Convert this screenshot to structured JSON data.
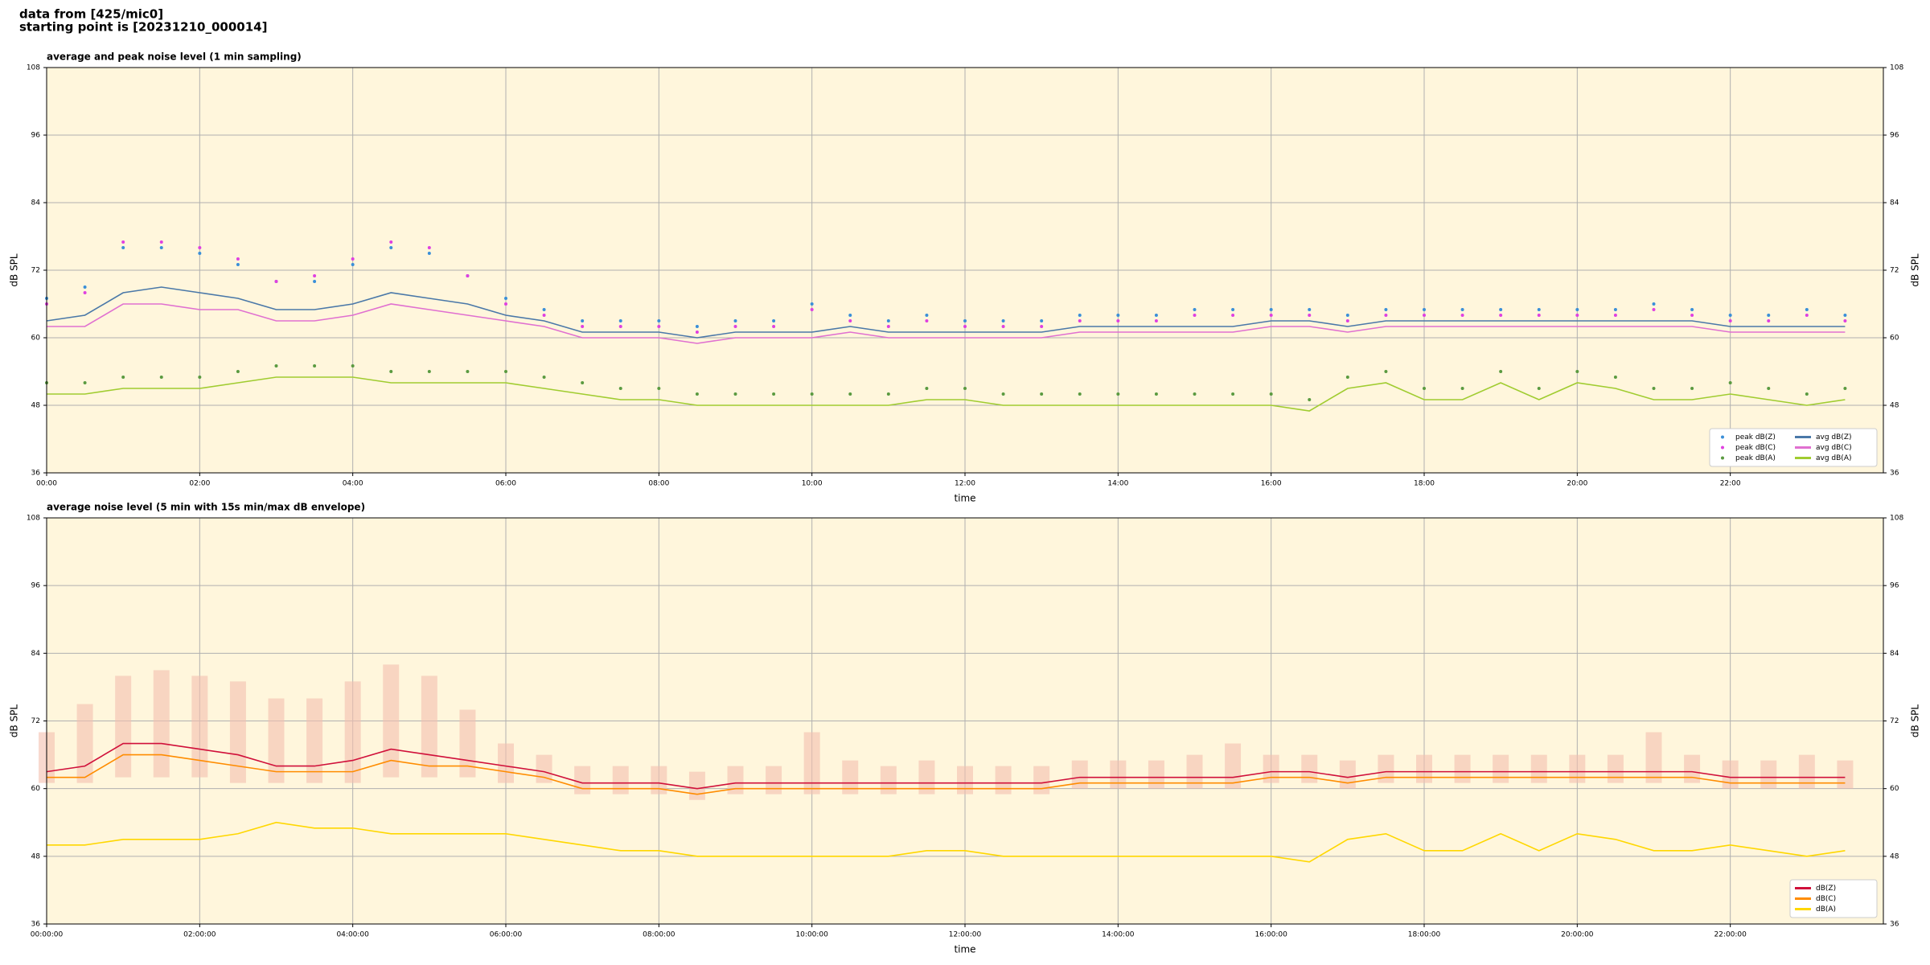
{
  "header": {
    "lines": [
      "data from [425/mic0]",
      "starting point is [20231210_000014]"
    ]
  },
  "chart_data": [
    {
      "type": "line",
      "title": "average and peak noise level (1 min sampling)",
      "xlabel": "time",
      "ylabel": "dB SPL",
      "background": "#fff6dc",
      "grid": true,
      "legend": "lower right",
      "legend_columns": 2,
      "xlim": [
        0,
        24
      ],
      "ylim": [
        36,
        108
      ],
      "yticks": [
        36,
        48,
        60,
        72,
        84,
        96,
        108
      ],
      "xticks": [
        {
          "value": 0,
          "label": "00:00"
        },
        {
          "value": 2,
          "label": "02:00"
        },
        {
          "value": 4,
          "label": "04:00"
        },
        {
          "value": 6,
          "label": "06:00"
        },
        {
          "value": 8,
          "label": "08:00"
        },
        {
          "value": 10,
          "label": "10:00"
        },
        {
          "value": 12,
          "label": "12:00"
        },
        {
          "value": 14,
          "label": "14:00"
        },
        {
          "value": 16,
          "label": "16:00"
        },
        {
          "value": 18,
          "label": "18:00"
        },
        {
          "value": 20,
          "label": "20:00"
        },
        {
          "value": 22,
          "label": "22:00"
        }
      ],
      "x": [
        0,
        0.5,
        1,
        1.5,
        2,
        2.5,
        3,
        3.5,
        4,
        4.5,
        5,
        5.5,
        6,
        6.5,
        7,
        7.5,
        8,
        8.5,
        9,
        9.5,
        10,
        10.5,
        11,
        11.5,
        12,
        12.5,
        13,
        13.5,
        14,
        14.5,
        15,
        15.5,
        16,
        16.5,
        17,
        17.5,
        18,
        18.5,
        19,
        19.5,
        20,
        20.5,
        21,
        21.5,
        22,
        22.5,
        23,
        23.5
      ],
      "series": [
        {
          "name": "peak dB(Z)",
          "style": "dots",
          "color": "#3a8fd8",
          "values": [
            67,
            69,
            76,
            76,
            75,
            73,
            70,
            70,
            73,
            76,
            75,
            71,
            67,
            65,
            63,
            63,
            63,
            62,
            63,
            63,
            66,
            64,
            63,
            64,
            63,
            63,
            63,
            64,
            64,
            64,
            65,
            65,
            65,
            65,
            64,
            65,
            65,
            65,
            65,
            65,
            65,
            65,
            66,
            65,
            64,
            64,
            65,
            64
          ]
        },
        {
          "name": "peak dB(C)",
          "style": "dots",
          "color": "#e040e0",
          "values": [
            66,
            68,
            77,
            77,
            76,
            74,
            70,
            71,
            74,
            77,
            76,
            71,
            66,
            64,
            62,
            62,
            62,
            61,
            62,
            62,
            65,
            63,
            62,
            63,
            62,
            62,
            62,
            63,
            63,
            63,
            64,
            64,
            64,
            64,
            63,
            64,
            64,
            64,
            64,
            64,
            64,
            64,
            65,
            64,
            63,
            63,
            64,
            63
          ]
        },
        {
          "name": "peak dB(A)",
          "style": "dots",
          "color": "#5a9a40",
          "values": [
            52,
            52,
            53,
            53,
            53,
            54,
            55,
            55,
            55,
            54,
            54,
            54,
            54,
            53,
            52,
            51,
            51,
            50,
            50,
            50,
            50,
            50,
            50,
            51,
            51,
            50,
            50,
            50,
            50,
            50,
            50,
            50,
            50,
            49,
            53,
            54,
            51,
            51,
            54,
            51,
            54,
            53,
            51,
            51,
            52,
            51,
            50,
            51
          ]
        },
        {
          "name": "avg dB(Z)",
          "style": "line",
          "color": "#4a78a8",
          "values": [
            63,
            64,
            68,
            69,
            68,
            67,
            65,
            65,
            66,
            68,
            67,
            66,
            64,
            63,
            61,
            61,
            61,
            60,
            61,
            61,
            61,
            62,
            61,
            61,
            61,
            61,
            61,
            62,
            62,
            62,
            62,
            62,
            63,
            63,
            62,
            63,
            63,
            63,
            63,
            63,
            63,
            63,
            63,
            63,
            62,
            62,
            62,
            62
          ]
        },
        {
          "name": "avg dB(C)",
          "style": "line",
          "color": "#e070d0",
          "values": [
            62,
            62,
            66,
            66,
            65,
            65,
            63,
            63,
            64,
            66,
            65,
            64,
            63,
            62,
            60,
            60,
            60,
            59,
            60,
            60,
            60,
            61,
            60,
            60,
            60,
            60,
            60,
            61,
            61,
            61,
            61,
            61,
            62,
            62,
            61,
            62,
            62,
            62,
            62,
            62,
            62,
            62,
            62,
            62,
            61,
            61,
            61,
            61
          ]
        },
        {
          "name": "avg dB(A)",
          "style": "line",
          "color": "#a0cc30",
          "values": [
            50,
            50,
            51,
            51,
            51,
            52,
            53,
            53,
            53,
            52,
            52,
            52,
            52,
            51,
            50,
            49,
            49,
            48,
            48,
            48,
            48,
            48,
            48,
            49,
            49,
            48,
            48,
            48,
            48,
            48,
            48,
            48,
            48,
            47,
            51,
            52,
            49,
            49,
            52,
            49,
            52,
            51,
            49,
            49,
            50,
            49,
            48,
            49
          ]
        }
      ]
    },
    {
      "type": "line",
      "title": "average noise level (5 min with 15s min/max dB envelope)",
      "xlabel": "time",
      "ylabel": "dB SPL",
      "background": "#fff6dc",
      "grid": true,
      "legend": "lower right",
      "legend_columns": 1,
      "xlim": [
        0,
        24
      ],
      "ylim": [
        36,
        108
      ],
      "yticks": [
        36,
        48,
        60,
        72,
        84,
        96,
        108
      ],
      "xticks": [
        {
          "value": 0,
          "label": "00:00:00"
        },
        {
          "value": 2,
          "label": "02:00:00"
        },
        {
          "value": 4,
          "label": "04:00:00"
        },
        {
          "value": 6,
          "label": "06:00:00"
        },
        {
          "value": 8,
          "label": "08:00:00"
        },
        {
          "value": 10,
          "label": "10:00:00"
        },
        {
          "value": 12,
          "label": "12:00:00"
        },
        {
          "value": 14,
          "label": "14:00:00"
        },
        {
          "value": 16,
          "label": "16:00:00"
        },
        {
          "value": 18,
          "label": "18:00:00"
        },
        {
          "value": 20,
          "label": "20:00:00"
        },
        {
          "value": 22,
          "label": "22:00:00"
        }
      ],
      "x": [
        0,
        0.5,
        1,
        1.5,
        2,
        2.5,
        3,
        3.5,
        4,
        4.5,
        5,
        5.5,
        6,
        6.5,
        7,
        7.5,
        8,
        8.5,
        9,
        9.5,
        10,
        10.5,
        11,
        11.5,
        12,
        12.5,
        13,
        13.5,
        14,
        14.5,
        15,
        15.5,
        16,
        16.5,
        17,
        17.5,
        18,
        18.5,
        19,
        19.5,
        20,
        20.5,
        21,
        21.5,
        22,
        22.5,
        23,
        23.5
      ],
      "band": {
        "color": "#f4c0b0",
        "upper": [
          70,
          75,
          80,
          81,
          80,
          79,
          76,
          76,
          79,
          82,
          80,
          74,
          68,
          66,
          64,
          64,
          64,
          63,
          64,
          64,
          70,
          65,
          64,
          65,
          64,
          64,
          64,
          65,
          65,
          65,
          66,
          68,
          66,
          66,
          65,
          66,
          66,
          66,
          66,
          66,
          66,
          66,
          70,
          66,
          65,
          65,
          66,
          65
        ],
        "lower": [
          61,
          61,
          62,
          62,
          62,
          61,
          61,
          61,
          61,
          62,
          62,
          62,
          61,
          61,
          59,
          59,
          59,
          58,
          59,
          59,
          59,
          59,
          59,
          59,
          59,
          59,
          59,
          60,
          60,
          60,
          60,
          60,
          61,
          61,
          60,
          61,
          61,
          61,
          61,
          61,
          61,
          61,
          61,
          61,
          60,
          60,
          60,
          60
        ]
      },
      "series": [
        {
          "name": "dB(Z)",
          "style": "line",
          "color": "#d0103a",
          "values": [
            63,
            64,
            68,
            68,
            67,
            66,
            64,
            64,
            65,
            67,
            66,
            65,
            64,
            63,
            61,
            61,
            61,
            60,
            61,
            61,
            61,
            61,
            61,
            61,
            61,
            61,
            61,
            62,
            62,
            62,
            62,
            62,
            63,
            63,
            62,
            63,
            63,
            63,
            63,
            63,
            63,
            63,
            63,
            63,
            62,
            62,
            62,
            62
          ]
        },
        {
          "name": "dB(C)",
          "style": "line",
          "color": "#ff8c00",
          "values": [
            62,
            62,
            66,
            66,
            65,
            64,
            63,
            63,
            63,
            65,
            64,
            64,
            63,
            62,
            60,
            60,
            60,
            59,
            60,
            60,
            60,
            60,
            60,
            60,
            60,
            60,
            60,
            61,
            61,
            61,
            61,
            61,
            62,
            62,
            61,
            62,
            62,
            62,
            62,
            62,
            62,
            62,
            62,
            62,
            61,
            61,
            61,
            61
          ]
        },
        {
          "name": "dB(A)",
          "style": "line",
          "color": "#ffd700",
          "values": [
            50,
            50,
            51,
            51,
            51,
            52,
            54,
            53,
            53,
            52,
            52,
            52,
            52,
            51,
            50,
            49,
            49,
            48,
            48,
            48,
            48,
            48,
            48,
            49,
            49,
            48,
            48,
            48,
            48,
            48,
            48,
            48,
            48,
            47,
            51,
            52,
            49,
            49,
            52,
            49,
            52,
            51,
            49,
            49,
            50,
            49,
            48,
            49
          ]
        }
      ]
    }
  ]
}
